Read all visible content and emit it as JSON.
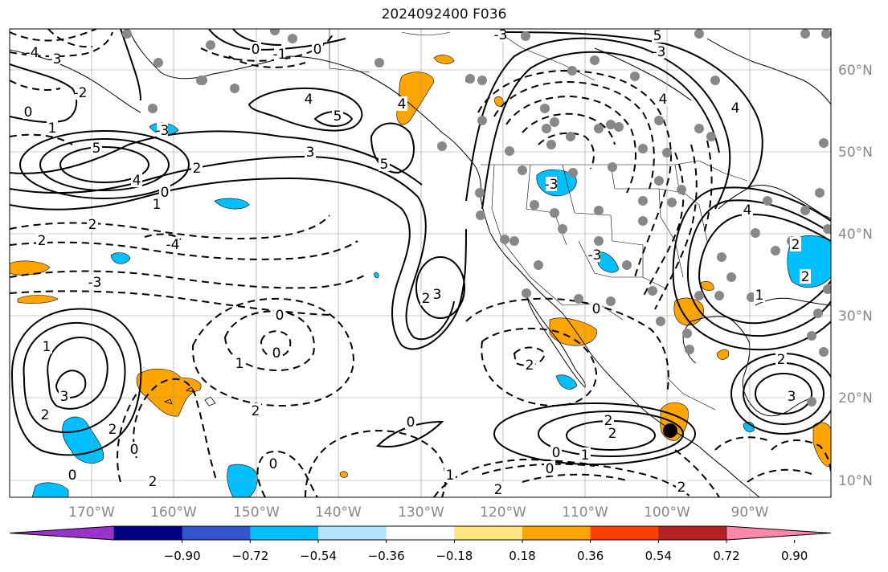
{
  "title": "2024092400 F036",
  "colors": {
    "land_outline": "#000000",
    "grid": "#999999",
    "axis_label": "#888888",
    "station": "#888888",
    "marker": "#000000"
  },
  "map": {
    "lon_labels": [
      "170°W",
      "160°W",
      "150°W",
      "140°W",
      "130°W",
      "120°W",
      "110°W",
      "100°W",
      "90°W"
    ],
    "lat_labels": [
      "60°N",
      "50°N",
      "40°N",
      "30°N",
      "20°N",
      "10°N"
    ]
  },
  "contour_labels": [
    "-4",
    "-3",
    "-2",
    "-1",
    "0",
    "1",
    "2",
    "3",
    "4",
    "5"
  ],
  "colorbar": {
    "colors": [
      "#9933cc",
      "#000080",
      "#3355cc",
      "#00bfff",
      "#b3e3ff",
      "#ffffff",
      "#ffe680",
      "#ffa500",
      "#ff4000",
      "#b22222",
      "#ff88aa"
    ],
    "tick_labels": [
      "−0.90",
      "−0.72",
      "−0.54",
      "−0.36",
      "−0.18",
      "0.18",
      "0.36",
      "0.54",
      "0.72",
      "0.90"
    ]
  },
  "shading": {
    "positive_color": "#ffa500",
    "negative_color": "#00bfff"
  }
}
